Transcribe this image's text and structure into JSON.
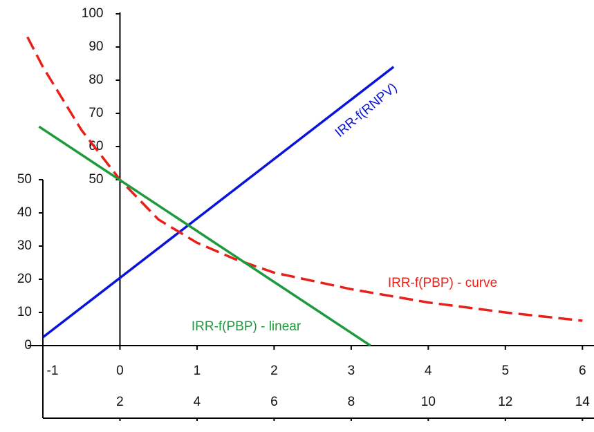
{
  "chart_data": {
    "type": "line",
    "xlim": [
      -1,
      6.15
    ],
    "xticks": [
      -1,
      0,
      1,
      2,
      3,
      4,
      5,
      6
    ],
    "x2lim": [
      0,
      14.3
    ],
    "x2ticks": [
      2,
      4,
      6,
      8,
      10,
      12,
      14
    ],
    "ylim": [
      0,
      100
    ],
    "yticks": [
      0,
      10,
      20,
      30,
      40,
      50
    ],
    "y2lim": [
      0,
      100
    ],
    "y2ticks": [
      50,
      60,
      70,
      80,
      90,
      100
    ],
    "series": [
      {
        "name": "IRR-f(RNPV)",
        "color": "#0a14d8",
        "dashed": false,
        "x": [
          -1,
          3.55
        ],
        "values": [
          2.5,
          84
        ]
      },
      {
        "name": "IRR-f(PBP) - curve",
        "color": "#e8201a",
        "dashed": true,
        "x": [
          -1.2,
          -1,
          -0.5,
          0,
          0.5,
          1,
          1.5,
          2,
          3,
          4,
          5,
          6
        ],
        "values": [
          93,
          84,
          65,
          50,
          38,
          31,
          26,
          22,
          17,
          13,
          10,
          7.5
        ]
      },
      {
        "name": "IRR-f(PBP) - linear",
        "color": "#1c9a3c",
        "dashed": false,
        "x": [
          -1.05,
          3.25
        ],
        "values": [
          66,
          0
        ]
      }
    ]
  }
}
